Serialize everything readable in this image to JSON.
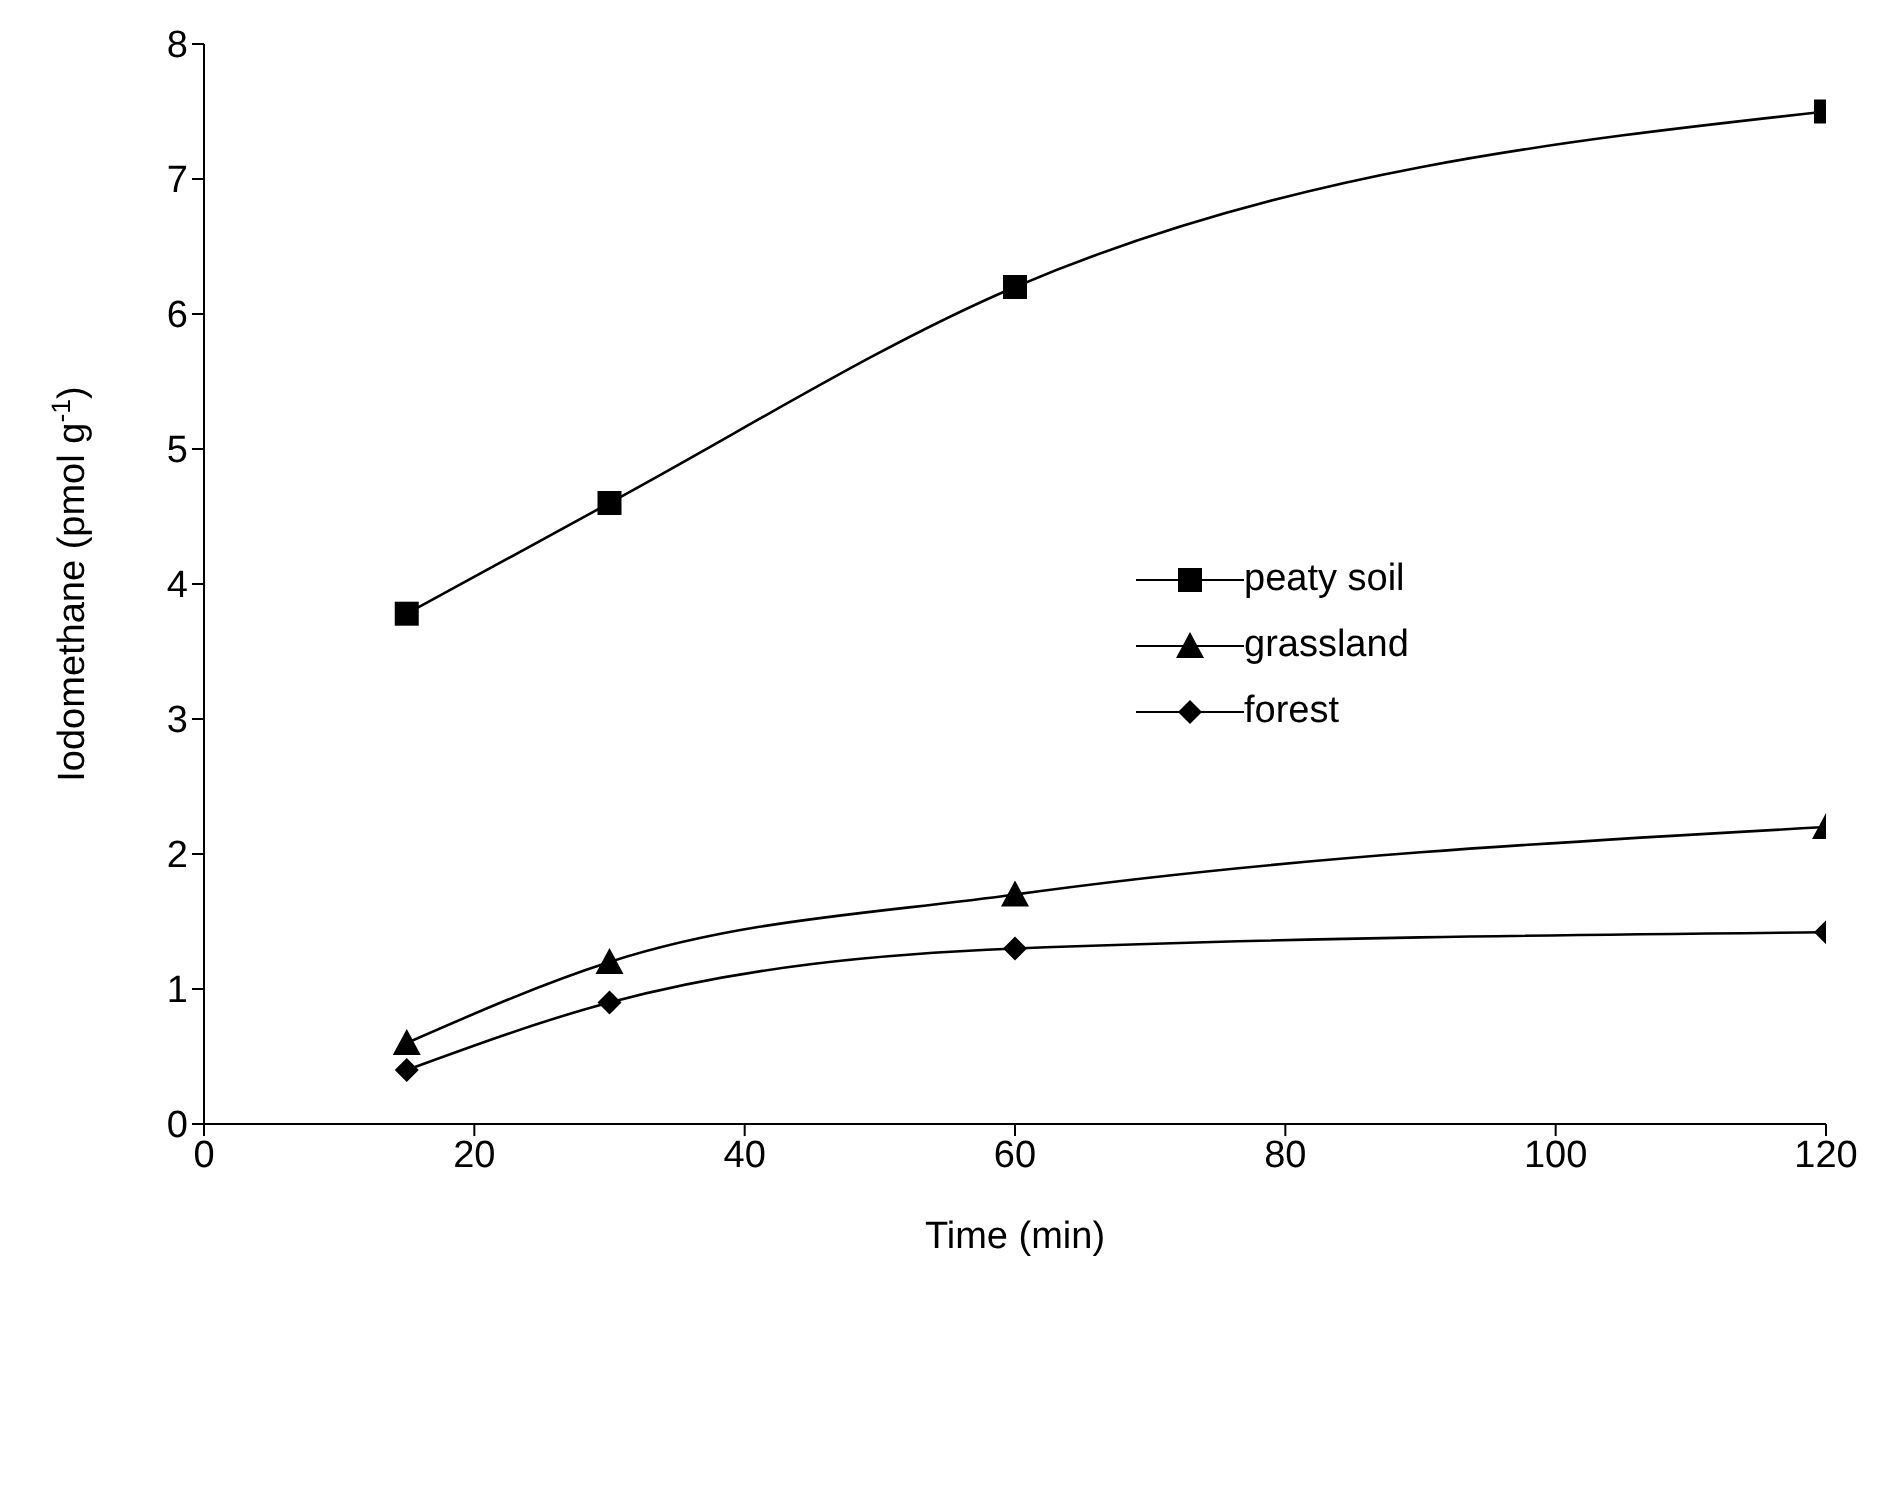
{
  "chart_data": {
    "type": "line",
    "xlabel": "Time (min)",
    "ylabel": "Iodomethane  (pmol g$^{-1}$)",
    "x": [
      15,
      30,
      60,
      120
    ],
    "series": [
      {
        "name": "peaty soil",
        "color": "#000000",
        "marker": "square",
        "values": [
          3.78,
          4.6,
          6.2,
          7.5
        ]
      },
      {
        "name": "grassland",
        "color": "#000000",
        "marker": "triangle",
        "values": [
          0.6,
          1.2,
          1.7,
          2.2
        ]
      },
      {
        "name": "forest",
        "color": "#000000",
        "marker": "diamond",
        "values": [
          0.4,
          0.9,
          1.3,
          1.42
        ]
      }
    ],
    "xlim": [
      0,
      120
    ],
    "xticks": [
      0,
      20,
      40,
      60,
      80,
      100,
      120
    ],
    "ylim": [
      0,
      8
    ],
    "yticks": [
      0,
      1,
      2,
      3,
      4,
      5,
      6,
      7,
      8
    ],
    "grid": false,
    "legend": "right",
    "line_style": "solid"
  }
}
